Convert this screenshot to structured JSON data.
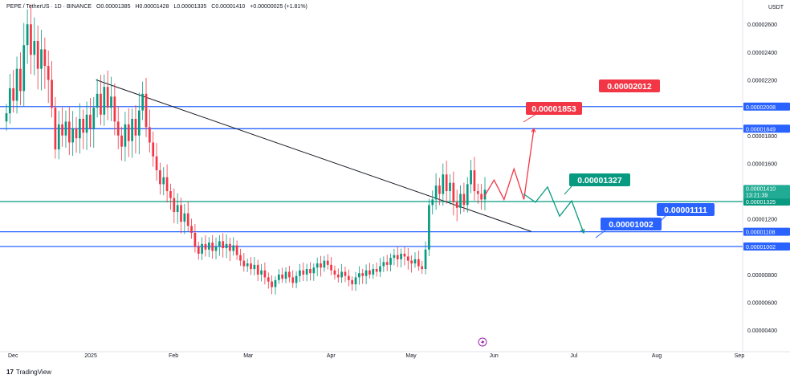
{
  "header": {
    "symbol": "PEPE / TetherUS · 1D · BINANCE",
    "open": "O0.00001385",
    "high": "H0.00001428",
    "low": "L0.00001335",
    "close": "C0.00001410",
    "change": "+0.00000025 (+1.81%)"
  },
  "currency": "USDT",
  "footer": {
    "brand": "TradingView"
  },
  "colors": {
    "up": "#089981",
    "down": "#f23645",
    "blue_line": "#2962ff",
    "green_line": "#089981",
    "price_tag": "#22ab94",
    "arrow_red": "#f23645",
    "arrow_green": "#089981",
    "trendline": "#131722",
    "axis_text": "#131722"
  },
  "chart_data": {
    "type": "candlestick",
    "x_ticks": [
      "Dec",
      "2025",
      "Feb",
      "Mar",
      "Apr",
      "May",
      "Jun",
      "Jul",
      "Aug",
      "Sep"
    ],
    "y_ticks": [
      "0.00002600",
      "0.00002400",
      "0.00002200",
      "0.00001800",
      "0.00001600",
      "0.00001200",
      "0.00000800",
      "0.00000600",
      "0.00000400"
    ],
    "ylim": [
      2.8e-06,
      2.74e-05
    ],
    "horizontal_levels": [
      {
        "value": 2.008e-05,
        "label": "0.00002008",
        "color": "blue"
      },
      {
        "value": 1.849e-05,
        "label": "0.00001849",
        "color": "blue"
      },
      {
        "value": 1.325e-05,
        "label": "0.00001325",
        "color": "green"
      },
      {
        "value": 1.108e-05,
        "label": "0.00001108",
        "color": "blue"
      },
      {
        "value": 1.002e-05,
        "label": "0.00001002",
        "color": "blue"
      }
    ],
    "current_price": {
      "value": 1.41e-05,
      "label": "0.00001410",
      "countdown": "13:21:39"
    },
    "annotations": [
      {
        "text": "0.00002012",
        "color": "red"
      },
      {
        "text": "0.00001853",
        "color": "red"
      },
      {
        "text": "0.00001327",
        "color": "green"
      },
      {
        "text": "0.00001111",
        "color": "blue"
      },
      {
        "text": "0.00001002",
        "color": "blue"
      }
    ],
    "trendline": {
      "start": {
        "date": "2025-01-03",
        "value": 2.2e-05
      },
      "end": {
        "date": "2025-06-15",
        "value": 1.11e-05
      }
    },
    "projection_red": [
      1.36e-05,
      1.48e-05,
      1.34e-05,
      1.56e-05,
      1.34e-05,
      1.85e-05
    ],
    "projection_green": [
      1.38e-05,
      1.32e-05,
      1.43e-05,
      1.22e-05,
      1.33e-05,
      1.1e-05
    ],
    "closes": [
      1.96e-05,
      2.14e-05,
      2.05e-05,
      2.28e-05,
      2.12e-05,
      2.45e-05,
      2.6e-05,
      2.38e-05,
      2.48e-05,
      2.28e-05,
      2.42e-05,
      2.3e-05,
      2.2e-05,
      2e-05,
      1.7e-05,
      1.88e-05,
      1.8e-05,
      1.9e-05,
      1.75e-05,
      1.85e-05,
      1.78e-05,
      1.92e-05,
      1.82e-05,
      1.95e-05,
      1.85e-05,
      2e-05,
      2.1e-05,
      1.95e-05,
      2.15e-05,
      2e-05,
      2.08e-05,
      1.9e-05,
      1.8e-05,
      1.72e-05,
      1.88e-05,
      1.76e-05,
      1.92e-05,
      1.8e-05,
      1.98e-05,
      2.1e-05,
      1.86e-05,
      1.75e-05,
      1.65e-05,
      1.55e-05,
      1.45e-05,
      1.5e-05,
      1.4e-05,
      1.35e-05,
      1.25e-05,
      1.3e-05,
      1.18e-05,
      1.24e-05,
      1.15e-05,
      1.1e-05,
      1e-05,
      9.5e-06,
      1.02e-05,
      9.8e-06,
      1.03e-05,
      9.7e-06,
      1e-05,
      1.04e-05,
      9.9e-06,
      1.02e-05,
      9.7e-06,
      1.01e-05,
      9.4e-06,
      9e-06,
      8.6e-06,
      8.8e-06,
      8.4e-06,
      8.7e-06,
      8e-06,
      8.3e-06,
      7.8e-06,
      7.5e-06,
      7.1e-06,
      7.6e-06,
      8e-06,
      7.7e-06,
      8.2e-06,
      7.8e-06,
      7.4e-06,
      7.9e-06,
      8.3e-06,
      8e-06,
      8.4e-06,
      8.1e-06,
      8.5e-06,
      8.8e-06,
      8.5e-06,
      9e-06,
      8.7e-06,
      8.3e-06,
      8e-06,
      7.8e-06,
      8.2e-06,
      7.9e-06,
      7.6e-06,
      7.3e-06,
      7.8e-06,
      8.1e-06,
      7.9e-06,
      8.3e-06,
      8e-06,
      8.4e-06,
      8.2e-06,
      8.6e-06,
      8.9e-06,
      8.7e-06,
      9.2e-06,
      9.4e-06,
      9.1e-06,
      9.5e-06,
      9.3e-06,
      9e-06,
      8.8e-06,
      9.1e-06,
      8.6e-06,
      8.4e-06,
      9.8e-06,
      1.3e-05,
      1.34e-05,
      1.44e-05,
      1.38e-05,
      1.52e-05,
      1.4e-05,
      1.46e-05,
      1.32e-05,
      1.28e-05,
      1.38e-05,
      1.3e-05,
      1.45e-05,
      1.55e-05,
      1.4e-05,
      1.38e-05,
      1.34e-05,
      1.41e-05
    ]
  }
}
